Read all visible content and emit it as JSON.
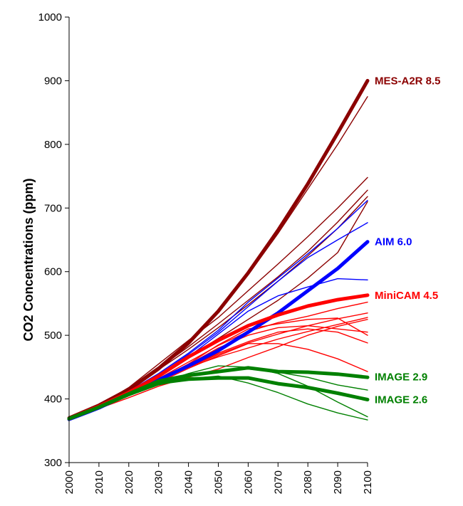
{
  "chart_data": {
    "type": "line",
    "title": "",
    "xlabel": "",
    "ylabel": "CO2 Concentrations (ppm)",
    "xlim": [
      2000,
      2100
    ],
    "ylim": [
      300,
      1000
    ],
    "x_ticks": [
      "2000",
      "2010",
      "2020",
      "2030",
      "2040",
      "2050",
      "2060",
      "2070",
      "2080",
      "2090",
      "2100"
    ],
    "y_ticks": [
      "300",
      "400",
      "500",
      "600",
      "700",
      "800",
      "900",
      "1000"
    ],
    "grid": false,
    "legend": "none",
    "x": [
      2000,
      2010,
      2020,
      2030,
      2040,
      2050,
      2060,
      2070,
      2080,
      2090,
      2100
    ],
    "series": [
      {
        "name": "MES-A2R 8.5",
        "color": "#8B0000",
        "emphasis": true,
        "values": [
          370,
          390,
          415,
          448,
          488,
          538,
          598,
          665,
          738,
          818,
          900
        ]
      },
      {
        "name": "",
        "color": "#8B0000",
        "emphasis": false,
        "values": [
          370,
          389,
          412,
          445,
          485,
          535,
          595,
          660,
          730,
          800,
          875
        ]
      },
      {
        "name": "",
        "color": "#8B0000",
        "emphasis": false,
        "values": [
          370,
          390,
          418,
          455,
          492,
          528,
          570,
          612,
          655,
          700,
          748
        ]
      },
      {
        "name": "",
        "color": "#8B0000",
        "emphasis": false,
        "values": [
          370,
          388,
          414,
          448,
          482,
          518,
          555,
          592,
          632,
          678,
          728
        ]
      },
      {
        "name": "",
        "color": "#8B0000",
        "emphasis": false,
        "values": [
          370,
          389,
          413,
          446,
          478,
          512,
          548,
          585,
          625,
          668,
          718
        ]
      },
      {
        "name": "",
        "color": "#8B0000",
        "emphasis": false,
        "values": [
          370,
          387,
          410,
          438,
          466,
          495,
          525,
          555,
          590,
          630,
          710
        ]
      },
      {
        "name": "AIM 6.0",
        "color": "#0000FF",
        "emphasis": true,
        "values": [
          368,
          386,
          408,
          430,
          452,
          476,
          505,
          535,
          570,
          605,
          647
        ]
      },
      {
        "name": "",
        "color": "#0000FF",
        "emphasis": false,
        "values": [
          368,
          388,
          412,
          440,
          472,
          508,
          552,
          590,
          628,
          668,
          712
        ]
      },
      {
        "name": "",
        "color": "#0000FF",
        "emphasis": false,
        "values": [
          368,
          387,
          410,
          438,
          470,
          505,
          545,
          585,
          622,
          650,
          677
        ]
      },
      {
        "name": "",
        "color": "#0000FF",
        "emphasis": false,
        "values": [
          368,
          387,
          410,
          436,
          466,
          502,
          538,
          562,
          576,
          589,
          587
        ]
      },
      {
        "name": "MiniCAM 4.5",
        "color": "#FF0000",
        "emphasis": true,
        "values": [
          369,
          388,
          410,
          436,
          466,
          492,
          515,
          532,
          546,
          556,
          563
        ]
      },
      {
        "name": "",
        "color": "#FF0000",
        "emphasis": false,
        "values": [
          369,
          387,
          408,
          432,
          458,
          484,
          506,
          520,
          530,
          542,
          552
        ]
      },
      {
        "name": "",
        "color": "#FF0000",
        "emphasis": false,
        "values": [
          369,
          386,
          406,
          428,
          450,
          470,
          488,
          502,
          515,
          526,
          535
        ]
      },
      {
        "name": "",
        "color": "#FF0000",
        "emphasis": false,
        "values": [
          369,
          386,
          406,
          428,
          450,
          466,
          480,
          494,
          506,
          517,
          528
        ]
      },
      {
        "name": "",
        "color": "#FF0000",
        "emphasis": false,
        "values": [
          369,
          386,
          407,
          430,
          455,
          485,
          510,
          518,
          525,
          527,
          500
        ]
      },
      {
        "name": "",
        "color": "#FF0000",
        "emphasis": false,
        "values": [
          369,
          386,
          407,
          430,
          454,
          480,
          500,
          512,
          515,
          510,
          505
        ]
      },
      {
        "name": "",
        "color": "#FF0000",
        "emphasis": false,
        "values": [
          369,
          386,
          406,
          428,
          450,
          472,
          490,
          505,
          510,
          505,
          488
        ]
      },
      {
        "name": "",
        "color": "#FF0000",
        "emphasis": false,
        "values": [
          369,
          386,
          405,
          426,
          448,
          468,
          487,
          487,
          478,
          463,
          443
        ]
      },
      {
        "name": "",
        "color": "#FF0000",
        "emphasis": false,
        "values": [
          369,
          385,
          402,
          420,
          434,
          447,
          465,
          482,
          500,
          514,
          525
        ]
      },
      {
        "name": "IMAGE 2.9",
        "color": "#008000",
        "emphasis": true,
        "values": [
          369,
          387,
          408,
          428,
          437,
          443,
          449,
          443,
          442,
          439,
          434
        ]
      },
      {
        "name": "IMAGE 2.6",
        "color": "#008000",
        "emphasis": true,
        "values": [
          369,
          387,
          407,
          425,
          431,
          433,
          433,
          424,
          418,
          409,
          399
        ]
      },
      {
        "name": "",
        "color": "#008000",
        "emphasis": false,
        "values": [
          369,
          386,
          406,
          425,
          440,
          452,
          450,
          440,
          420,
          395,
          372
        ]
      },
      {
        "name": "",
        "color": "#008000",
        "emphasis": false,
        "values": [
          369,
          386,
          405,
          422,
          432,
          436,
          425,
          410,
          392,
          378,
          367
        ]
      },
      {
        "name": "",
        "color": "#008000",
        "emphasis": false,
        "values": [
          369,
          386,
          406,
          426,
          437,
          444,
          447,
          442,
          434,
          422,
          414
        ]
      }
    ],
    "labels": [
      {
        "text": "MES-A2R 8.5",
        "color": "#8B0000",
        "value": 900
      },
      {
        "text": "AIM 6.0",
        "color": "#0000FF",
        "value": 647
      },
      {
        "text": "MiniCAM 4.5",
        "color": "#FF0000",
        "value": 563
      },
      {
        "text": "IMAGE 2.9",
        "color": "#008000",
        "value": 435
      },
      {
        "text": "IMAGE 2.6",
        "color": "#008000",
        "value": 399
      }
    ]
  }
}
